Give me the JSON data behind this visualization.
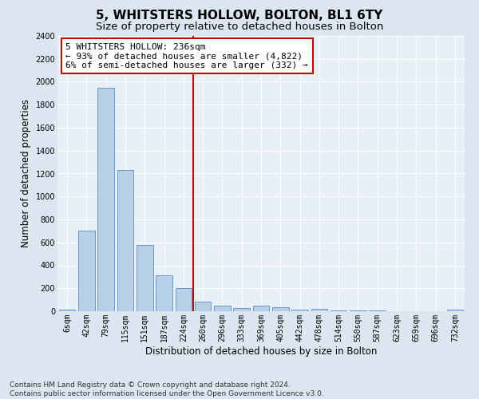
{
  "title": "5, WHITSTERS HOLLOW, BOLTON, BL1 6TY",
  "subtitle": "Size of property relative to detached houses in Bolton",
  "xlabel": "Distribution of detached houses by size in Bolton",
  "ylabel": "Number of detached properties",
  "footer_line1": "Contains HM Land Registry data © Crown copyright and database right 2024.",
  "footer_line2": "Contains public sector information licensed under the Open Government Licence v3.0.",
  "annotation_line1": "5 WHITSTERS HOLLOW: 236sqm",
  "annotation_line2": "← 93% of detached houses are smaller (4,822)",
  "annotation_line3": "6% of semi-detached houses are larger (332) →",
  "categories": [
    "6sqm",
    "42sqm",
    "79sqm",
    "115sqm",
    "151sqm",
    "187sqm",
    "224sqm",
    "260sqm",
    "296sqm",
    "333sqm",
    "369sqm",
    "405sqm",
    "442sqm",
    "478sqm",
    "514sqm",
    "550sqm",
    "587sqm",
    "623sqm",
    "659sqm",
    "696sqm",
    "732sqm"
  ],
  "values": [
    15,
    700,
    1950,
    1230,
    575,
    310,
    200,
    85,
    50,
    30,
    50,
    35,
    15,
    20,
    8,
    5,
    5,
    3,
    3,
    3,
    15
  ],
  "bar_color": "#b8cfe8",
  "bar_edge_color": "#6699cc",
  "vline_color": "#cc0000",
  "ylim": [
    0,
    2400
  ],
  "yticks": [
    0,
    200,
    400,
    600,
    800,
    1000,
    1200,
    1400,
    1600,
    1800,
    2000,
    2200,
    2400
  ],
  "bg_color": "#dce6f0",
  "plot_bg_color": "#e8eff7",
  "grid_color": "#ffffff",
  "annotation_box_color": "#cc0000",
  "title_fontsize": 11,
  "subtitle_fontsize": 9.5,
  "axis_label_fontsize": 8.5,
  "tick_fontsize": 7,
  "annotation_fontsize": 8,
  "footer_fontsize": 6.5
}
